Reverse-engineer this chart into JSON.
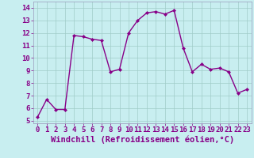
{
  "x": [
    0,
    1,
    2,
    3,
    4,
    5,
    6,
    7,
    8,
    9,
    10,
    11,
    12,
    13,
    14,
    15,
    16,
    17,
    18,
    19,
    20,
    21,
    22,
    23
  ],
  "y": [
    5.3,
    6.7,
    5.9,
    5.9,
    11.8,
    11.7,
    11.5,
    11.4,
    8.9,
    9.1,
    12.0,
    13.0,
    13.6,
    13.7,
    13.5,
    13.8,
    10.8,
    8.9,
    9.5,
    9.1,
    9.2,
    8.9,
    7.2,
    7.5
  ],
  "line_color": "#880088",
  "marker": "D",
  "marker_size": 2.0,
  "line_width": 1.0,
  "bg_color": "#c8eef0",
  "grid_color": "#a0ccc8",
  "xlabel": "Windchill (Refroidissement éolien,°C)",
  "xlabel_color": "#880088",
  "xlabel_fontsize": 7.5,
  "tick_color": "#880088",
  "tick_fontsize": 6.5,
  "ytick_min": 5,
  "ytick_max": 14,
  "ylim": [
    4.8,
    14.5
  ],
  "xlim": [
    -0.5,
    23.5
  ]
}
